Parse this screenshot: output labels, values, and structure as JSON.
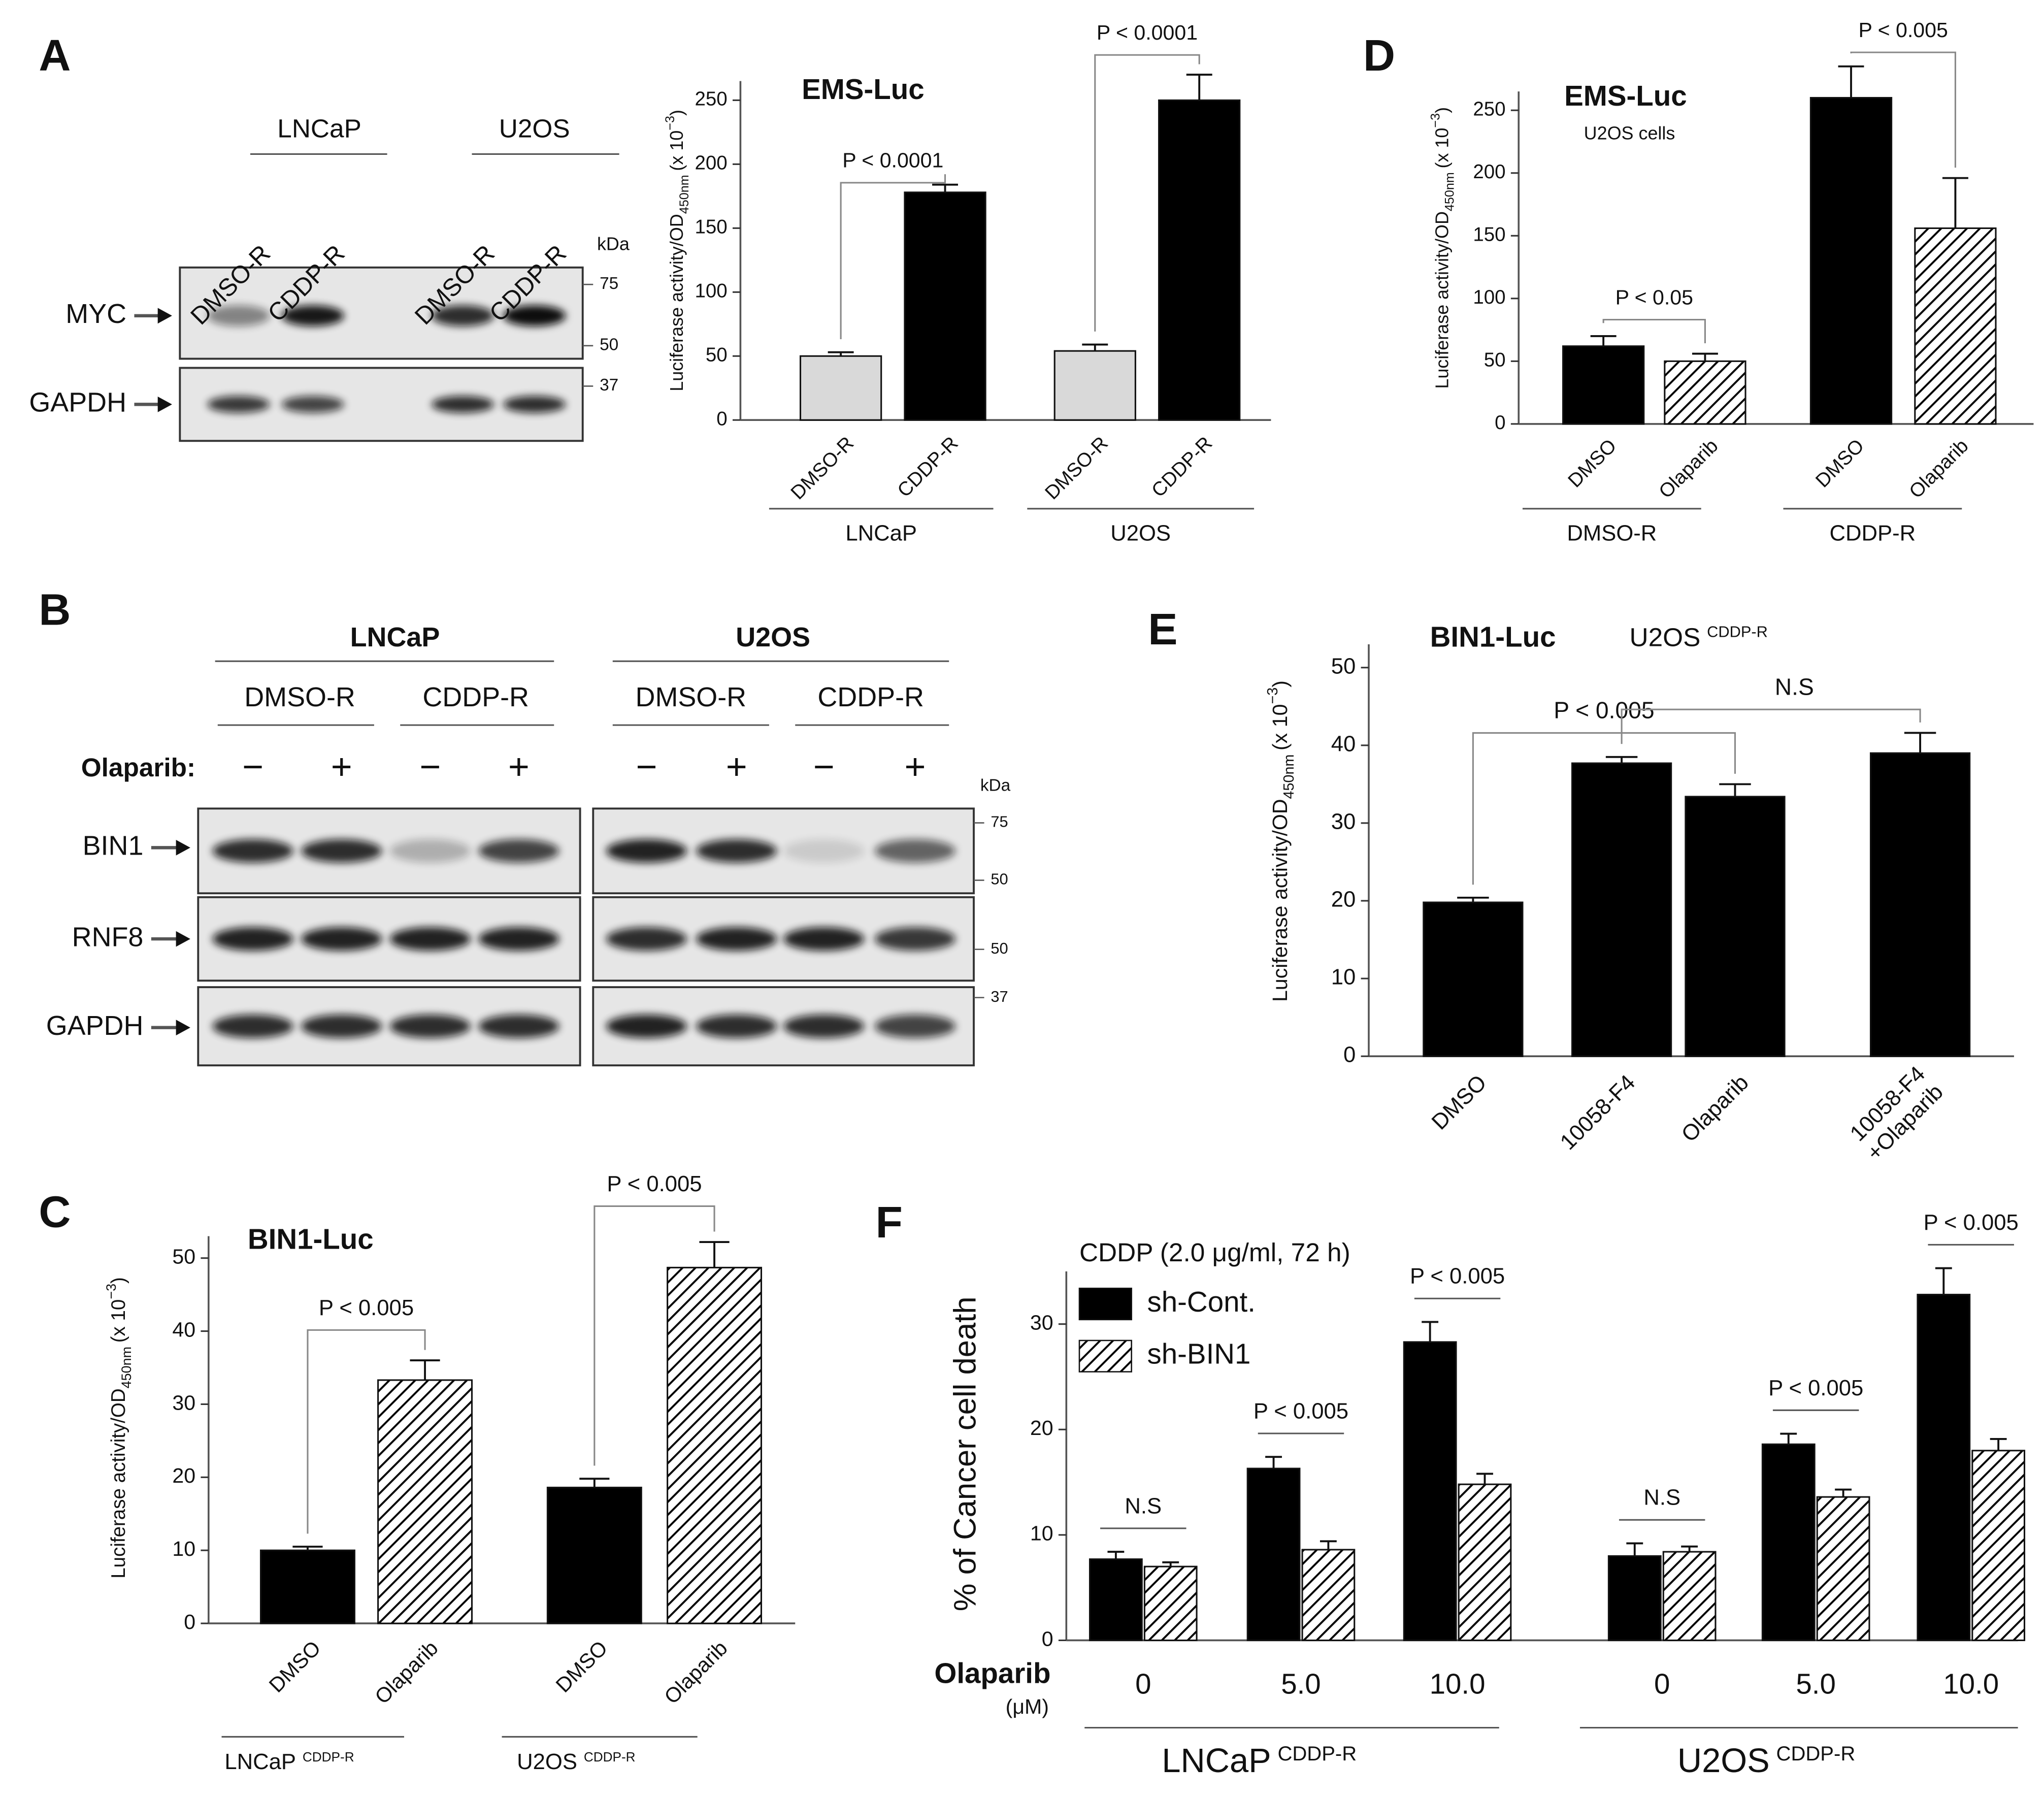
{
  "panel_labels": [
    "A",
    "B",
    "C",
    "D",
    "E",
    "F"
  ],
  "blots": [
    {
      "groups": [
        "LNCaP",
        "U2OS"
      ],
      "lanes": [
        "DMSO-R",
        "CDDP-R",
        "DMSO-R",
        "CDDP-R"
      ],
      "unit": "kDa",
      "markers": [
        "75",
        "50",
        "37"
      ],
      "rows": [
        "MYC",
        "GAPDH"
      ]
    },
    {
      "groups": [
        "LNCaP",
        "U2OS"
      ],
      "subgroups": [
        "DMSO-R",
        "CDDP-R",
        "DMSO-R",
        "CDDP-R"
      ],
      "treatment": "Olaparib:",
      "treatment_signs": [
        "−",
        "+",
        "−",
        "+",
        "−",
        "+",
        "−",
        "+"
      ],
      "unit": "kDa",
      "markers": [
        "75",
        "50",
        "50",
        "37"
      ],
      "rows": [
        "BIN1",
        "RNF8",
        "GAPDH"
      ]
    }
  ],
  "chart_data": [
    {
      "type": "bar",
      "title": "EMS-Luc",
      "ylabel": [
        "Luciferase activity/OD",
        "450nm",
        "(x 10",
        "−3",
        ")"
      ],
      "categories": [
        "DMSO-R",
        "CDDP-R",
        "DMSO-R",
        "CDDP-R"
      ],
      "groups": [
        "LNCaP",
        "U2OS"
      ],
      "values": [
        50,
        178,
        54,
        250
      ],
      "errors": [
        3,
        6,
        5,
        20
      ],
      "colors": [
        "#d9d9d9",
        "#000000",
        "#d9d9d9",
        "#000000"
      ],
      "patterns": [
        "solid",
        "solid",
        "solid",
        "solid"
      ],
      "ylim": [
        0,
        265
      ],
      "yticks": [
        0,
        50,
        100,
        150,
        200,
        250
      ],
      "annotations": [
        "P < 0.0001",
        "P < 0.0001"
      ]
    },
    {
      "type": "bar",
      "title": "EMS-Luc",
      "subtitle": "U2OS cells",
      "ylabel": [
        "Luciferase activity/OD",
        "450nm",
        "(x 10",
        "−3",
        ")"
      ],
      "categories": [
        "DMSO",
        "Olaparib",
        "DMSO",
        "Olaparib"
      ],
      "groups": [
        "DMSO-R",
        "CDDP-R"
      ],
      "values": [
        62,
        50,
        260,
        156
      ],
      "errors": [
        8,
        6,
        25,
        40
      ],
      "colors": [
        "#000000",
        "#000000",
        "#000000",
        "#000000"
      ],
      "patterns": [
        "solid",
        "hatched",
        "solid",
        "hatched"
      ],
      "ylim": [
        0,
        265
      ],
      "yticks": [
        0,
        50,
        100,
        150,
        200,
        250
      ],
      "annotations": [
        "P < 0.05",
        "P < 0.005"
      ]
    },
    {
      "type": "bar",
      "title": "BIN1-Luc",
      "ylabel": [
        "Luciferase activity/OD",
        "450nm",
        "(x 10",
        "−3",
        ")"
      ],
      "categories": [
        "DMSO",
        "Olaparib",
        "DMSO",
        "Olaparib"
      ],
      "groups": [
        [
          "LNCaP",
          "CDDP-R"
        ],
        [
          "U2OS",
          "CDDP-R"
        ]
      ],
      "values": [
        10,
        33.3,
        18.6,
        48.7
      ],
      "errors": [
        0.5,
        2.7,
        1.2,
        3.5
      ],
      "colors": [
        "#000000",
        "#000000",
        "#000000",
        "#000000"
      ],
      "patterns": [
        "solid",
        "hatched",
        "solid",
        "hatched"
      ],
      "ylim": [
        0,
        53
      ],
      "yticks": [
        0,
        10,
        20,
        30,
        40,
        50
      ],
      "annotations": [
        "P < 0.005",
        "P < 0.005"
      ]
    },
    {
      "type": "bar",
      "title": "BIN1-Luc",
      "subtitle": [
        "U2OS",
        "CDDP-R"
      ],
      "ylabel": [
        "Luciferase activity/OD",
        "450nm",
        "(x 10",
        "−3",
        ")"
      ],
      "categories": [
        [
          "DMSO"
        ],
        [
          "10058-F4"
        ],
        [
          "Olaparib"
        ],
        [
          "10058-F4",
          "+Olaparib"
        ]
      ],
      "values": [
        19.8,
        37.7,
        33.4,
        39
      ],
      "errors": [
        0.6,
        0.8,
        1.6,
        2.6
      ],
      "colors": [
        "#000000",
        "#000000",
        "#000000",
        "#000000"
      ],
      "patterns": [
        "solid",
        "solid",
        "solid",
        "solid"
      ],
      "ylim": [
        0,
        53
      ],
      "yticks": [
        0,
        10,
        20,
        30,
        40,
        50
      ],
      "annotations": [
        "P < 0.005",
        "N.S"
      ]
    },
    {
      "type": "grouped_bar",
      "subtitle": "CDDP (2.0 μg/ml, 72 h)",
      "ylabel": "% of Cancer cell death",
      "xlabel": [
        "Olaparib",
        "(μM)"
      ],
      "categories": [
        "0",
        "5.0",
        "10.0",
        "0",
        "5.0",
        "10.0"
      ],
      "groups": [
        [
          "LNCaP",
          "CDDP-R"
        ],
        [
          "U2OS",
          "CDDP-R"
        ]
      ],
      "series": [
        {
          "name": "sh-Cont.",
          "color": "#000000",
          "pattern": "solid",
          "values": [
            7.7,
            16.3,
            28.3,
            8,
            18.6,
            32.8
          ],
          "errors": [
            0.7,
            1.1,
            1.9,
            1.2,
            1.0,
            2.5
          ]
        },
        {
          "name": "sh-BIN1",
          "color": "#000000",
          "pattern": "hatched",
          "values": [
            7,
            8.6,
            14.8,
            8.4,
            13.6,
            18
          ],
          "errors": [
            0.4,
            0.8,
            1.0,
            0.5,
            0.7,
            1.1
          ]
        }
      ],
      "ylim": [
        0,
        35
      ],
      "yticks": [
        0,
        10,
        20,
        30
      ],
      "legend": "upper left",
      "annotations": [
        "N.S",
        "P < 0.005",
        "P < 0.005",
        "N.S",
        "P < 0.005",
        "P < 0.005"
      ]
    }
  ]
}
